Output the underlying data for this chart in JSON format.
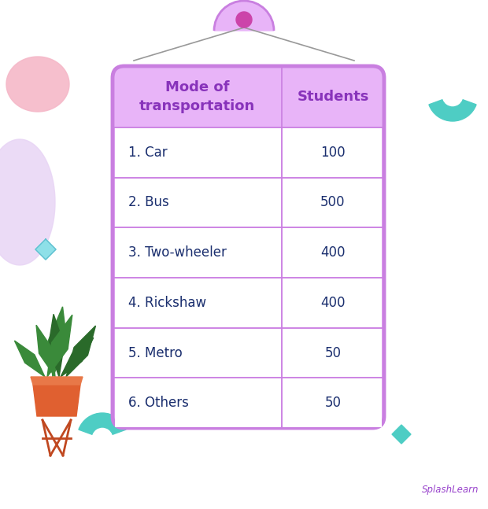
{
  "col1_header": "Mode of\ntransportation",
  "col2_header": "Students",
  "rows": [
    [
      "1. Car",
      "100"
    ],
    [
      "2. Bus",
      "500"
    ],
    [
      "3. Two-wheeler",
      "400"
    ],
    [
      "4. Rickshaw",
      "400"
    ],
    [
      "5. Metro",
      "50"
    ],
    [
      "6. Others",
      "50"
    ]
  ],
  "table_border_color": "#c97fe0",
  "table_bg_color": "#e8b4f8",
  "cell_bg_color": "#ffffff",
  "header_text_color": "#8833bb",
  "cell_text_color": "#1a2e6e",
  "grid_line_color": "#c97fe0",
  "background_color": "#ffffff",
  "splashlearn_color": "#9944cc",
  "title_fontsize": 13,
  "cell_fontsize": 12,
  "pink_blob_color": "#f5b8c8",
  "purple_blob_color": "#e8d5f5",
  "teal_color": "#4ecdc4",
  "diamond_color": "#8ee0e8",
  "string_color": "#999999",
  "circle_color": "#cc44aa",
  "pot_color": "#e06030",
  "pot_rim_color": "#e87848",
  "stand_color": "#c04820",
  "leaf_color": "#3a8a3a",
  "leaf_dark": "#2a6a2a"
}
